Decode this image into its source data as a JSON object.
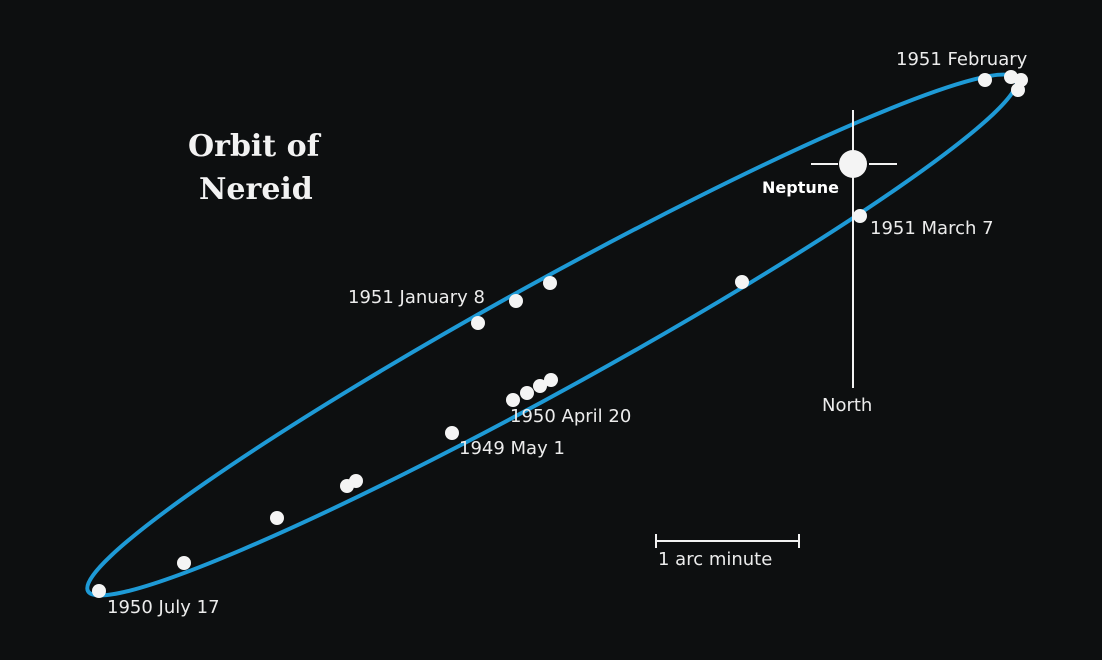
{
  "title": {
    "line1": "Orbit of",
    "line2": "Nereid"
  },
  "planet": {
    "name": "Neptune"
  },
  "direction_label": "North",
  "scale_bar": {
    "label": "1 arc minute"
  },
  "date_labels": {
    "feb_1951": "1951 February",
    "mar_1951": "1951 March 7",
    "jan_1951": "1951 January 8",
    "apr_1950": "1950 April 20",
    "may_1949": "1949 May 1",
    "jul_1950": "1950 July 17"
  },
  "colors": {
    "background": "#0d0f10",
    "orbit": "#1e9ad6",
    "points": "#f4f4f4",
    "text": "#ececec"
  }
}
